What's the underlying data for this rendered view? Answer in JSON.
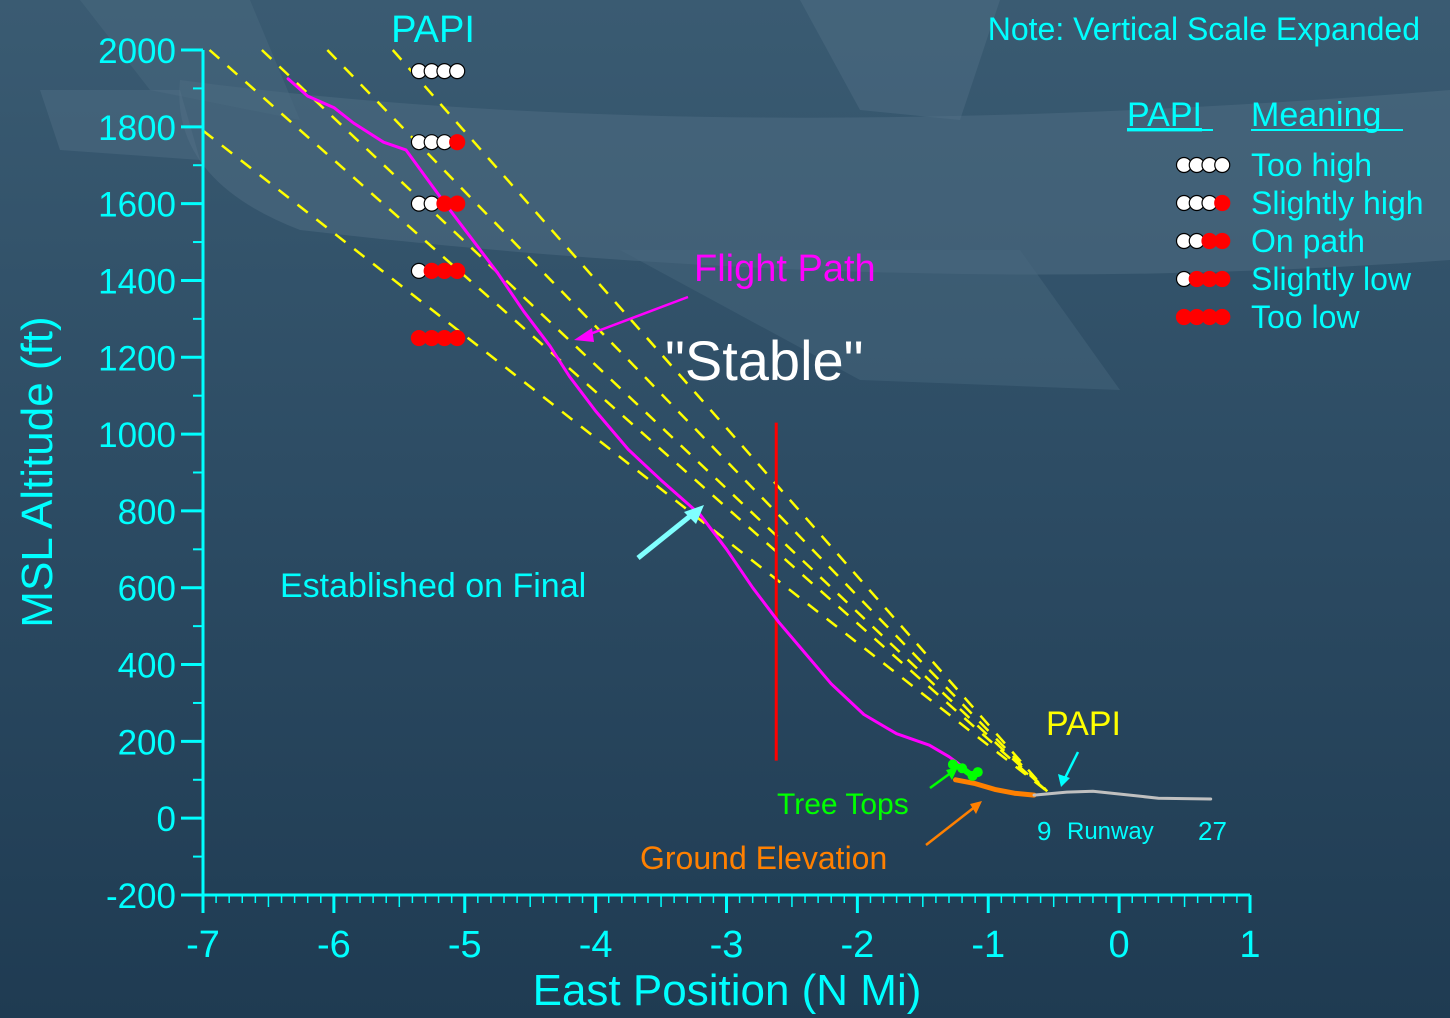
{
  "papi_header": "PAPI",
  "note": "Note: Vertical Scale Expanded",
  "legend": {
    "col1": "PAPI",
    "col2": "Meaning",
    "entries": [
      {
        "label": "Too high",
        "red": 0
      },
      {
        "label": "Slightly high",
        "red": 1
      },
      {
        "label": "On path",
        "red": 2
      },
      {
        "label": "Slightly low",
        "red": 3
      },
      {
        "label": "Too low",
        "red": 4
      }
    ]
  },
  "annotations": {
    "flight_path": "Flight Path",
    "stable": "\"Stable\"",
    "established": "Established on Final",
    "tree_tops": "Tree Tops",
    "ground_elevation": "Ground Elevation",
    "papi_runway": "PAPI",
    "runway": "Runway",
    "runway_start": "9",
    "runway_end": "27"
  },
  "colors": {
    "axis": "#00ffff",
    "flight_path": "#ff00ff",
    "glideslope": "#ffff00",
    "stable_line": "#ff0000",
    "tree_tops": "#00ff00",
    "ground": "#ff8000",
    "runway": "#c0c0c0",
    "papi_white": "#ffffff",
    "papi_red": "#ff0000"
  },
  "chart_data": {
    "type": "line",
    "xlabel": "East Position (N Mi)",
    "ylabel": "MSL Altitude (ft)",
    "xlim": [
      -7,
      1
    ],
    "ylim": [
      -200,
      2000
    ],
    "xticks": [
      "-7",
      "-6",
      "-5",
      "-4",
      "-3",
      "-2",
      "-1",
      "0",
      "1"
    ],
    "yticks": [
      "-200",
      "0",
      "200",
      "400",
      "600",
      "800",
      "1000",
      "1200",
      "1400",
      "1600",
      "1800",
      "2000"
    ],
    "series": [
      {
        "name": "Flight Path",
        "x": [
          -6.35,
          -6.2,
          -6.0,
          -5.85,
          -5.62,
          -5.45,
          -5.3,
          -5.15,
          -4.95,
          -4.75,
          -4.55,
          -4.35,
          -4.2,
          -4.0,
          -3.75,
          -3.5,
          -3.2,
          -3.0,
          -2.8,
          -2.6,
          -2.4,
          -2.2,
          -1.95,
          -1.7,
          -1.45,
          -1.3,
          -1.2
        ],
        "y": [
          1925,
          1880,
          1850,
          1810,
          1760,
          1740,
          1670,
          1600,
          1510,
          1420,
          1320,
          1230,
          1150,
          1060,
          960,
          880,
          790,
          700,
          600,
          510,
          430,
          350,
          270,
          220,
          190,
          160,
          135
        ]
      },
      {
        "name": "Tree Tops",
        "x": [
          -1.27,
          -1.2,
          -1.12,
          -1.08
        ],
        "y": [
          140,
          130,
          110,
          120
        ]
      },
      {
        "name": "Ground Elevation",
        "x": [
          -1.25,
          -1.1,
          -0.95,
          -0.8,
          -0.65
        ],
        "y": [
          100,
          90,
          75,
          65,
          60
        ]
      },
      {
        "name": "Runway",
        "x": [
          -0.65,
          -0.4,
          -0.2,
          0.0,
          0.3,
          0.7
        ],
        "y": [
          60,
          68,
          70,
          63,
          52,
          50
        ]
      }
    ],
    "glideslope_lines": [
      {
        "x1": -7.0,
        "y1": 1790,
        "x2": -0.55,
        "y2": 70
      },
      {
        "x1": -6.95,
        "y1": 2000,
        "x2": -0.55,
        "y2": 70
      },
      {
        "x1": -6.55,
        "y1": 2000,
        "x2": -0.55,
        "y2": 70
      },
      {
        "x1": -6.05,
        "y1": 2000,
        "x2": -0.55,
        "y2": 70
      },
      {
        "x1": -5.55,
        "y1": 2000,
        "x2": -0.55,
        "y2": 70
      }
    ],
    "stable_x": -2.62,
    "stable_y_range": [
      150,
      1030
    ],
    "papi_markers": [
      {
        "x": -5.35,
        "y": 1945,
        "red": 0
      },
      {
        "x": -5.35,
        "y": 1760,
        "red": 1
      },
      {
        "x": -5.35,
        "y": 1600,
        "red": 2
      },
      {
        "x": -5.35,
        "y": 1425,
        "red": 3
      },
      {
        "x": -5.35,
        "y": 1250,
        "red": 4
      }
    ]
  }
}
